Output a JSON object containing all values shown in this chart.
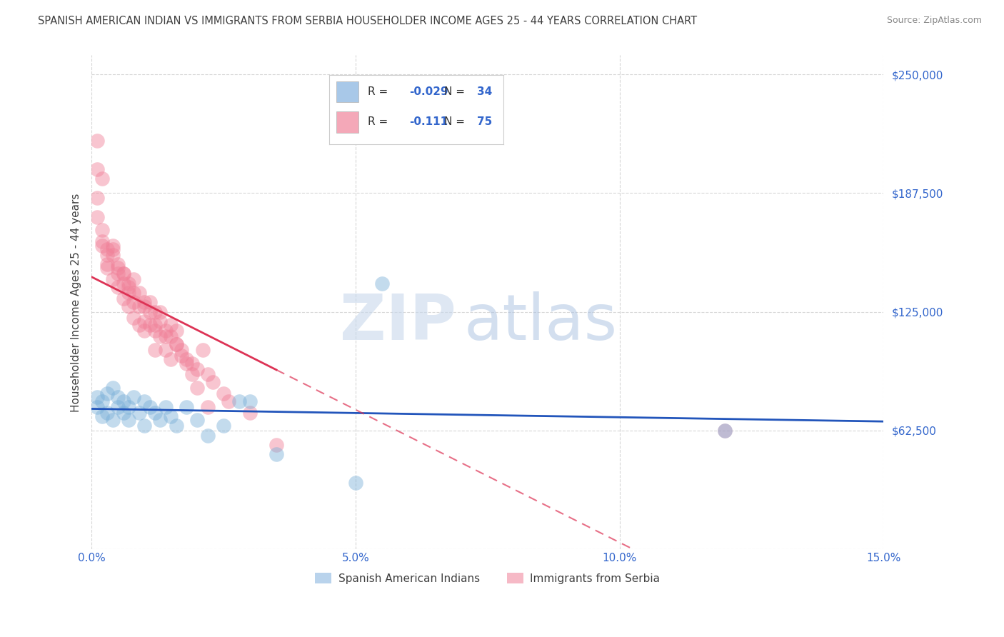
{
  "title": "SPANISH AMERICAN INDIAN VS IMMIGRANTS FROM SERBIA HOUSEHOLDER INCOME AGES 25 - 44 YEARS CORRELATION CHART",
  "source": "Source: ZipAtlas.com",
  "ylabel": "Householder Income Ages 25 - 44 years",
  "xlim": [
    0.0,
    0.15
  ],
  "ylim": [
    0,
    260000
  ],
  "yticks": [
    0,
    62500,
    125000,
    187500,
    250000
  ],
  "ytick_labels": [
    "",
    "$62,500",
    "$125,000",
    "$187,500",
    "$250,000"
  ],
  "xticks": [
    0.0,
    0.05,
    0.1,
    0.15
  ],
  "xtick_labels": [
    "0.0%",
    "5.0%",
    "10.0%",
    "15.0%"
  ],
  "legend1_label": "Spanish American Indians",
  "legend2_label": "Immigrants from Serbia",
  "legend1_color": "#a8c8e8",
  "legend2_color": "#f4a8b8",
  "scatter1_color": "#7ab0d8",
  "scatter2_color": "#f08098",
  "line1_color": "#2255bb",
  "line2_color": "#dd3355",
  "r1": -0.029,
  "n1": 34,
  "r2": -0.111,
  "n2": 75,
  "watermark_zip": "ZIP",
  "watermark_atlas": "atlas",
  "background_color": "#ffffff",
  "grid_color": "#cccccc",
  "title_color": "#404040",
  "axis_color": "#3366cc",
  "scatter1_x": [
    0.001,
    0.001,
    0.002,
    0.002,
    0.003,
    0.003,
    0.004,
    0.004,
    0.005,
    0.005,
    0.006,
    0.006,
    0.007,
    0.007,
    0.008,
    0.009,
    0.01,
    0.01,
    0.011,
    0.012,
    0.013,
    0.014,
    0.015,
    0.016,
    0.018,
    0.02,
    0.022,
    0.025,
    0.028,
    0.03,
    0.035,
    0.05,
    0.055,
    0.12
  ],
  "scatter1_y": [
    80000,
    75000,
    78000,
    70000,
    82000,
    72000,
    85000,
    68000,
    80000,
    75000,
    78000,
    72000,
    75000,
    68000,
    80000,
    72000,
    78000,
    65000,
    75000,
    72000,
    68000,
    75000,
    70000,
    65000,
    75000,
    68000,
    60000,
    65000,
    78000,
    78000,
    50000,
    35000,
    140000,
    62500
  ],
  "scatter2_x": [
    0.001,
    0.001,
    0.002,
    0.002,
    0.002,
    0.003,
    0.003,
    0.003,
    0.004,
    0.004,
    0.004,
    0.005,
    0.005,
    0.005,
    0.006,
    0.006,
    0.006,
    0.007,
    0.007,
    0.007,
    0.008,
    0.008,
    0.008,
    0.009,
    0.009,
    0.01,
    0.01,
    0.01,
    0.011,
    0.011,
    0.012,
    0.012,
    0.012,
    0.013,
    0.013,
    0.014,
    0.014,
    0.015,
    0.015,
    0.016,
    0.016,
    0.017,
    0.018,
    0.019,
    0.02,
    0.021,
    0.022,
    0.023,
    0.025,
    0.026,
    0.001,
    0.001,
    0.002,
    0.003,
    0.004,
    0.005,
    0.006,
    0.007,
    0.008,
    0.009,
    0.01,
    0.011,
    0.012,
    0.013,
    0.014,
    0.015,
    0.016,
    0.017,
    0.018,
    0.019,
    0.02,
    0.022,
    0.03,
    0.035,
    0.12
  ],
  "scatter2_y": [
    215000,
    185000,
    168000,
    160000,
    195000,
    158000,
    148000,
    155000,
    155000,
    142000,
    160000,
    145000,
    138000,
    150000,
    140000,
    132000,
    145000,
    135000,
    128000,
    140000,
    130000,
    122000,
    135000,
    128000,
    118000,
    120000,
    130000,
    115000,
    118000,
    125000,
    125000,
    115000,
    105000,
    120000,
    112000,
    115000,
    105000,
    112000,
    100000,
    115000,
    108000,
    105000,
    100000,
    98000,
    95000,
    105000,
    92000,
    88000,
    82000,
    78000,
    200000,
    175000,
    162000,
    150000,
    158000,
    148000,
    145000,
    138000,
    142000,
    135000,
    128000,
    130000,
    118000,
    125000,
    112000,
    118000,
    108000,
    102000,
    98000,
    92000,
    85000,
    75000,
    72000,
    55000,
    62500
  ]
}
